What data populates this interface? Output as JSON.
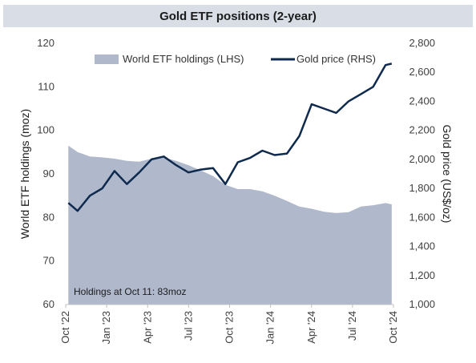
{
  "chart_data": {
    "type": "area+line",
    "title": "Gold ETF positions (2-year)",
    "ylabel_left": "World ETF holdings (moz)",
    "ylabel_right": "Gold price (US$/oz)",
    "ylim_left": [
      60,
      120
    ],
    "ylim_right": [
      1000,
      2800
    ],
    "yticks_left": [
      "60",
      "70",
      "80",
      "90",
      "100",
      "110",
      "120"
    ],
    "yticks_right": [
      "1,000",
      "1,200",
      "1,400",
      "1,600",
      "1,800",
      "2,000",
      "2,200",
      "2,400",
      "2,600",
      "2,800"
    ],
    "xticks": [
      "Oct '22",
      "Jan '23",
      "Apr '23",
      "Jul '23",
      "Oct '23",
      "Jan '24",
      "Apr '24",
      "Jul '24",
      "Oct '24"
    ],
    "grid": false,
    "legend_position": "top",
    "annotation": "Holdings at Oct 11: 83moz",
    "x": [
      "2022-10-07",
      "2022-10-28",
      "2022-11-25",
      "2022-12-23",
      "2023-01-20",
      "2023-02-17",
      "2023-03-17",
      "2023-04-14",
      "2023-05-12",
      "2023-06-09",
      "2023-07-07",
      "2023-08-04",
      "2023-09-01",
      "2023-09-29",
      "2023-10-27",
      "2023-11-24",
      "2023-12-22",
      "2024-01-19",
      "2024-02-16",
      "2024-03-15",
      "2024-04-12",
      "2024-05-10",
      "2024-06-07",
      "2024-07-05",
      "2024-08-02",
      "2024-08-30",
      "2024-09-27",
      "2024-10-11"
    ],
    "series": [
      {
        "name": "World ETF holdings (LHS)",
        "kind": "area",
        "axis": "left",
        "color": "#b0b8cc",
        "values": [
          96.5,
          95.0,
          94.0,
          93.8,
          93.5,
          93.0,
          92.8,
          93.5,
          93.8,
          93.0,
          92.0,
          90.8,
          89.5,
          87.5,
          86.5,
          86.5,
          86.0,
          85.0,
          83.8,
          82.5,
          82.0,
          81.3,
          81.0,
          81.2,
          82.5,
          82.8,
          83.3,
          83.0
        ]
      },
      {
        "name": "Gold price (RHS)",
        "kind": "line",
        "axis": "right",
        "color": "#0f2a4d",
        "values": [
          1700,
          1645,
          1750,
          1800,
          1920,
          1830,
          1910,
          2000,
          2020,
          1960,
          1910,
          1930,
          1940,
          1830,
          1980,
          2010,
          2060,
          2030,
          2040,
          2160,
          2380,
          2350,
          2320,
          2400,
          2450,
          2500,
          2650,
          2660
        ]
      }
    ]
  }
}
